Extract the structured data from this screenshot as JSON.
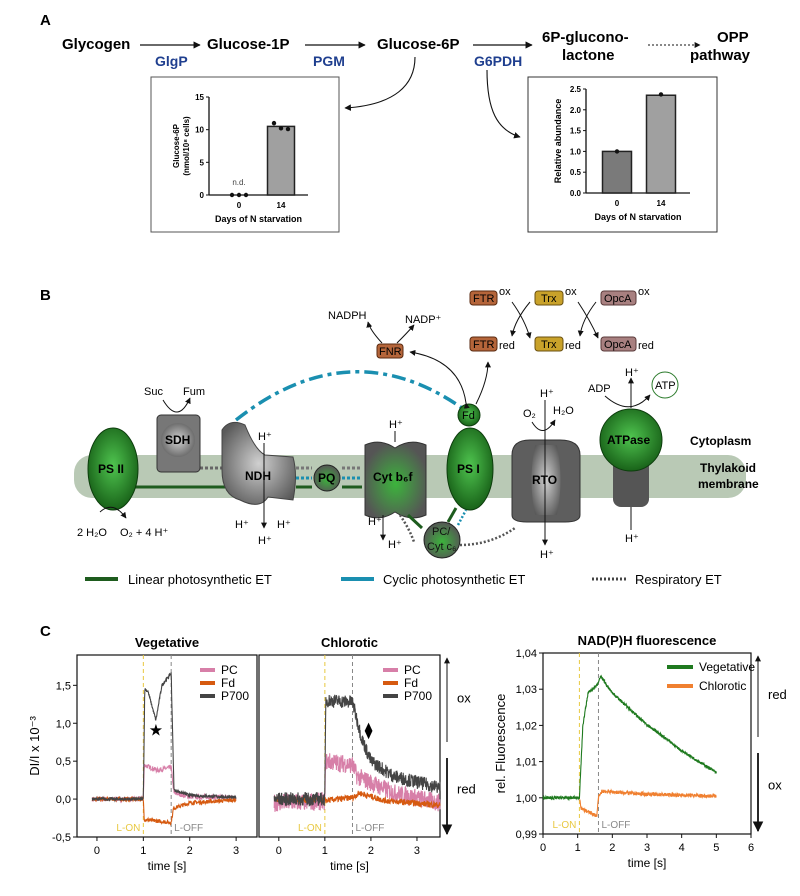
{
  "panel_labels": {
    "a": "A",
    "b": "B",
    "c": "C"
  },
  "pathway": {
    "nodes": {
      "glycogen": "Glycogen",
      "g1p": "Glucose-1P",
      "g6p": "Glucose-6P",
      "lactone_1": "6P-glucono-",
      "lactone_2": "lactone",
      "opp_1": "OPP",
      "opp_2": "pathway"
    },
    "enzymes": {
      "glgp": "GlgP",
      "pgm": "PGM",
      "g6pdh": "G6PDH"
    },
    "enzyme_color": "#1f3f8f"
  },
  "diagram": {
    "ps2": "PS II",
    "sdh": "SDH",
    "suc": "Suc",
    "fum": "Fum",
    "ndh": "NDH",
    "pq": "PQ",
    "cytb6f": "Cyt b₆f",
    "ps1": "PS I",
    "fd": "Fd",
    "rto": "RTO",
    "atpase": "ATPase",
    "atp": "ATP",
    "adp": "ADP",
    "fnr": "FNR",
    "nadph": "NADPH",
    "nadp": "NADP⁺",
    "ftr": "FTR",
    "trx": "Trx",
    "opca": "OpcA",
    "ox": "ox",
    "red": "red",
    "pc_1": "PC/",
    "pc_2": "Cyt c₆",
    "hplus": "H⁺",
    "cytoplasm": "Cytoplasm",
    "thylakoid_1": "Thylakoid",
    "thylakoid_2": "membrane",
    "water": "2 H₂O",
    "o2_protons": "O₂ + 4 H⁺",
    "o2": "O₂",
    "h2o": "H₂O",
    "colors": {
      "linear": "#1e5c1e",
      "cyclic": "#1a8fb0",
      "respiratory": "#555555",
      "membrane": "#b9c9b5"
    },
    "legend": [
      {
        "label": "Linear photosynthetic ET"
      },
      {
        "label": "Cyclic photosynthetic ET"
      },
      {
        "label": "Respiratory ET"
      }
    ]
  },
  "chart_data": [
    {
      "type": "bar",
      "title": "",
      "categories": [
        "0",
        "14"
      ],
      "values": [
        0,
        10.5
      ],
      "points": [
        [
          0,
          0,
          0
        ],
        [
          11.0,
          10.2,
          10.1
        ]
      ],
      "annotations": [
        "n.d."
      ],
      "ylabel_1": "Glucose-6P",
      "ylabel_2": "(nmol/10⁸ cells)",
      "xlabel": "Days of N starvation",
      "ylim": [
        0,
        15
      ],
      "yticks": [
        "0",
        "5",
        "10",
        "15"
      ],
      "colors": [
        "#7a7a7a",
        "#a0a0a0"
      ]
    },
    {
      "type": "bar",
      "title": "",
      "categories": [
        "0",
        "14"
      ],
      "values": [
        1.0,
        2.35
      ],
      "points": [
        [
          1.0
        ],
        [
          2.37
        ]
      ],
      "ylabel": "Relative abundance",
      "xlabel": "Days of N starvation",
      "ylim": [
        0,
        2.5
      ],
      "yticks": [
        "0.0",
        "0.5",
        "1.0",
        "1.5",
        "2.0",
        "2.5"
      ],
      "colors": [
        "#7a7a7a",
        "#a0a0a0"
      ]
    },
    {
      "type": "line",
      "title": "Vegetative",
      "xlabel": "time [s]",
      "ylabel": "DI/I x 10⁻³",
      "xlim": [
        -0.43,
        3.45
      ],
      "ylim": [
        -0.5,
        1.9
      ],
      "xticks": [
        "0",
        "1",
        "2",
        "3"
      ],
      "yticks": [
        "-0,5",
        "0,0",
        "0,5",
        "1,0",
        "1,5"
      ],
      "markers": [
        {
          "label": "L-ON",
          "t": 1.0,
          "color": "#e8c840"
        },
        {
          "label": "L-OFF",
          "t": 1.6,
          "color": "#888888"
        }
      ],
      "annotation": {
        "symbol": "★",
        "t": 1.27,
        "v": 0.92
      },
      "series": [
        {
          "name": "PC",
          "color": "#d77fa8",
          "noise": 0.03,
          "points": [
            [
              -0.1,
              0
            ],
            [
              1.0,
              0
            ],
            [
              1.02,
              0.45
            ],
            [
              1.3,
              0.38
            ],
            [
              1.6,
              0.42
            ],
            [
              1.66,
              0.08
            ],
            [
              2,
              0.03
            ],
            [
              3,
              0.02
            ]
          ]
        },
        {
          "name": "Fd",
          "color": "#d65a10",
          "noise": 0.025,
          "points": [
            [
              -0.1,
              0
            ],
            [
              1.0,
              0
            ],
            [
              1.02,
              -0.27
            ],
            [
              1.6,
              -0.31
            ],
            [
              1.65,
              -0.12
            ],
            [
              2,
              -0.05
            ],
            [
              3,
              -0.01
            ]
          ]
        },
        {
          "name": "P700",
          "color": "#444444",
          "noise": 0.02,
          "points": [
            [
              -0.1,
              0
            ],
            [
              1.0,
              0
            ],
            [
              1.03,
              1.45
            ],
            [
              1.1,
              1.42
            ],
            [
              1.27,
              1.04
            ],
            [
              1.4,
              1.5
            ],
            [
              1.6,
              1.66
            ],
            [
              1.66,
              0.12
            ],
            [
              2,
              0.05
            ],
            [
              3,
              0.02
            ]
          ]
        }
      ]
    },
    {
      "type": "line",
      "title": "Chlorotic",
      "xlabel": "time [s]",
      "xlim": [
        -0.43,
        3.5
      ],
      "ylim": [
        -0.5,
        1.9
      ],
      "xticks": [
        "0",
        "1",
        "2",
        "3"
      ],
      "markers": [
        {
          "label": "L-ON",
          "t": 1.0,
          "color": "#e8c840"
        },
        {
          "label": "L-OFF",
          "t": 1.6,
          "color": "#888888"
        }
      ],
      "annotation": {
        "symbol": "⧫",
        "t": 1.95,
        "v": 0.92
      },
      "side_labels": {
        "ox": "ox",
        "red": "red"
      },
      "series": [
        {
          "name": "PC",
          "color": "#d77fa8",
          "noise": 0.12,
          "points": [
            [
              -0.1,
              -0.05
            ],
            [
              1.0,
              -0.03
            ],
            [
              1.02,
              0.5
            ],
            [
              1.6,
              0.45
            ],
            [
              1.7,
              0.3
            ],
            [
              2.5,
              0.08
            ],
            [
              3.5,
              -0.05
            ]
          ]
        },
        {
          "name": "Fd",
          "color": "#d65a10",
          "noise": 0.04,
          "points": [
            [
              -0.1,
              0
            ],
            [
              1.0,
              -0.02
            ],
            [
              1.6,
              0.02
            ],
            [
              1.75,
              0.08
            ],
            [
              2.3,
              -0.02
            ],
            [
              3.5,
              -0.08
            ]
          ]
        },
        {
          "name": "P700",
          "color": "#444444",
          "noise": 0.09,
          "points": [
            [
              -0.1,
              0
            ],
            [
              1.0,
              0
            ],
            [
              1.02,
              1.3
            ],
            [
              1.6,
              1.28
            ],
            [
              1.8,
              0.8
            ],
            [
              2.0,
              0.5
            ],
            [
              2.5,
              0.3
            ],
            [
              3.5,
              0.15
            ]
          ]
        }
      ]
    },
    {
      "type": "line",
      "title": "NAD(P)H fluorescence",
      "xlabel": "time [s]",
      "ylabel": "rel. Fluorescence",
      "xlim": [
        0,
        6
      ],
      "ylim": [
        0.99,
        1.04
      ],
      "xticks": [
        "0",
        "1",
        "2",
        "3",
        "4",
        "5",
        "6"
      ],
      "yticks": [
        "0,99",
        "1,00",
        "1,01",
        "1,02",
        "1,03",
        "1,04"
      ],
      "markers": [
        {
          "label": "L-ON",
          "t": 1.05,
          "color": "#e8c840"
        },
        {
          "label": "L-OFF",
          "t": 1.6,
          "color": "#888888"
        }
      ],
      "side_labels": {
        "red": "red",
        "ox": "ox"
      },
      "series": [
        {
          "name": "Vegetative",
          "color": "#1f7a1f",
          "noise": 0.0004,
          "points": [
            [
              0,
              1.0
            ],
            [
              1.05,
              1.0
            ],
            [
              1.15,
              1.02
            ],
            [
              1.3,
              1.029
            ],
            [
              1.55,
              1.031
            ],
            [
              1.66,
              1.0335
            ],
            [
              2.0,
              1.029
            ],
            [
              2.9,
              1.021
            ],
            [
              4,
              1.013
            ],
            [
              5,
              1.007
            ]
          ]
        },
        {
          "name": "Chlorotic",
          "color": "#f08030",
          "noise": 0.0005,
          "points": [
            [
              1.05,
              1.0
            ],
            [
              1.1,
              0.997
            ],
            [
              1.55,
              0.995
            ],
            [
              1.6,
              1.0
            ],
            [
              1.7,
              1.0018
            ],
            [
              3,
              1.001
            ],
            [
              5,
              1.0005
            ]
          ]
        }
      ]
    }
  ]
}
